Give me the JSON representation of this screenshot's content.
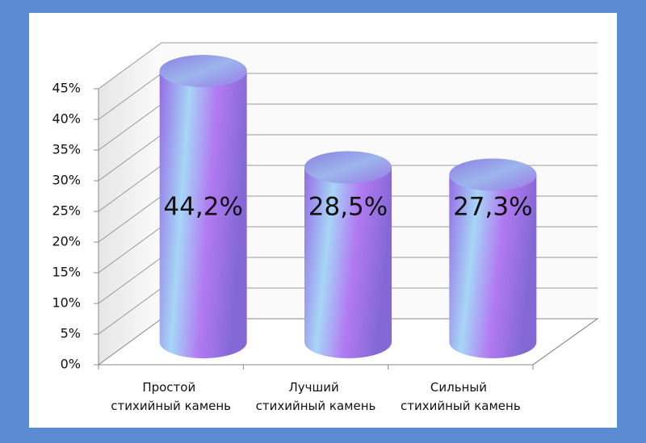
{
  "chart_data": {
    "type": "bar",
    "categories": [
      "Простой стихийный камень",
      "Лучший стихийный камень",
      "Сильный стихийный камень"
    ],
    "values": [
      44.2,
      28.5,
      27.3
    ],
    "value_labels": [
      "44,2%",
      "28,5%",
      "27,3%"
    ],
    "ylim": [
      0,
      45
    ],
    "yticks": [
      {
        "value": 0,
        "label": "0%"
      },
      {
        "value": 5,
        "label": "5%"
      },
      {
        "value": 10,
        "label": "10%"
      },
      {
        "value": 15,
        "label": "15%"
      },
      {
        "value": 20,
        "label": "20%"
      },
      {
        "value": 25,
        "label": "25%"
      },
      {
        "value": 30,
        "label": "30%"
      },
      {
        "value": 35,
        "label": "35%"
      },
      {
        "value": 40,
        "label": "40%"
      },
      {
        "value": 45,
        "label": "45%"
      }
    ],
    "grid": true
  }
}
